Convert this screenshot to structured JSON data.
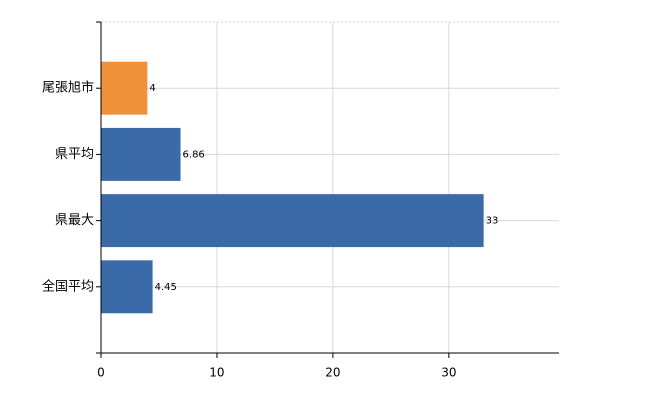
{
  "chart_data": {
    "type": "hbar",
    "categories": [
      "尾張旭市",
      "県平均",
      "県最大",
      "全国平均"
    ],
    "values": [
      4,
      6.86,
      33,
      4.45
    ],
    "colors": [
      "#f0913a",
      "#3a6aa8",
      "#3a6aa8",
      "#3a6aa8"
    ],
    "xlim": [
      0,
      39.5
    ],
    "xticks": [
      0,
      10,
      20,
      30
    ],
    "grid": true
  }
}
